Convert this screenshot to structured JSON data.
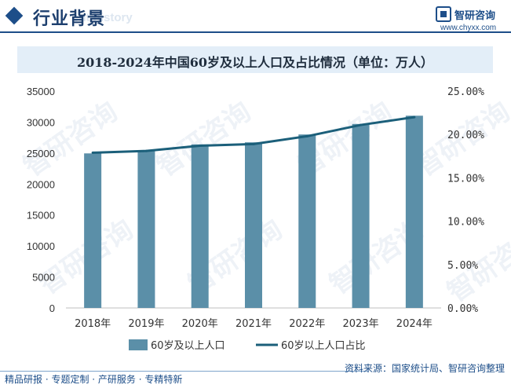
{
  "header": {
    "section_title": "行业背景",
    "section_subtitle_ghost": "ent history",
    "logo_name": "智研咨询",
    "logo_url": "www.chyxx.com"
  },
  "chart_data": {
    "type": "bar",
    "title": "2018-2024年中国60岁及以上人口及占比情况（单位：万人）",
    "categories": [
      "2018年",
      "2019年",
      "2020年",
      "2021年",
      "2022年",
      "2023年",
      "2024年"
    ],
    "series": [
      {
        "name": "60岁及以上人口",
        "type": "bar",
        "axis": "left",
        "color": "#5b8fa8",
        "values": [
          24949,
          25388,
          26402,
          26736,
          28004,
          29697,
          31031
        ]
      },
      {
        "name": "60岁以上人口占比",
        "type": "line",
        "axis": "right",
        "color": "#1b5f7a",
        "values": [
          17.9,
          18.1,
          18.7,
          18.9,
          19.8,
          21.1,
          22.0
        ]
      }
    ],
    "left_axis": {
      "min": 0,
      "max": 35000,
      "step": 5000,
      "tick_labels": [
        "0",
        "5000",
        "10000",
        "15000",
        "20000",
        "25000",
        "30000",
        "35000"
      ]
    },
    "right_axis": {
      "min": 0,
      "max": 25,
      "step": 5,
      "unit": "%",
      "tick_labels": [
        "0.00%",
        "5.00%",
        "10.00%",
        "15.00%",
        "20.00%",
        "25.00%"
      ]
    },
    "grid": false,
    "legend_position": "bottom"
  },
  "footer": {
    "left_text": "精品研报 · 专题定制 · 产研服务 · 专精特新",
    "right_text": "资料来源：国家统计局、智研咨询整理",
    "watermark": "智研咨询"
  }
}
